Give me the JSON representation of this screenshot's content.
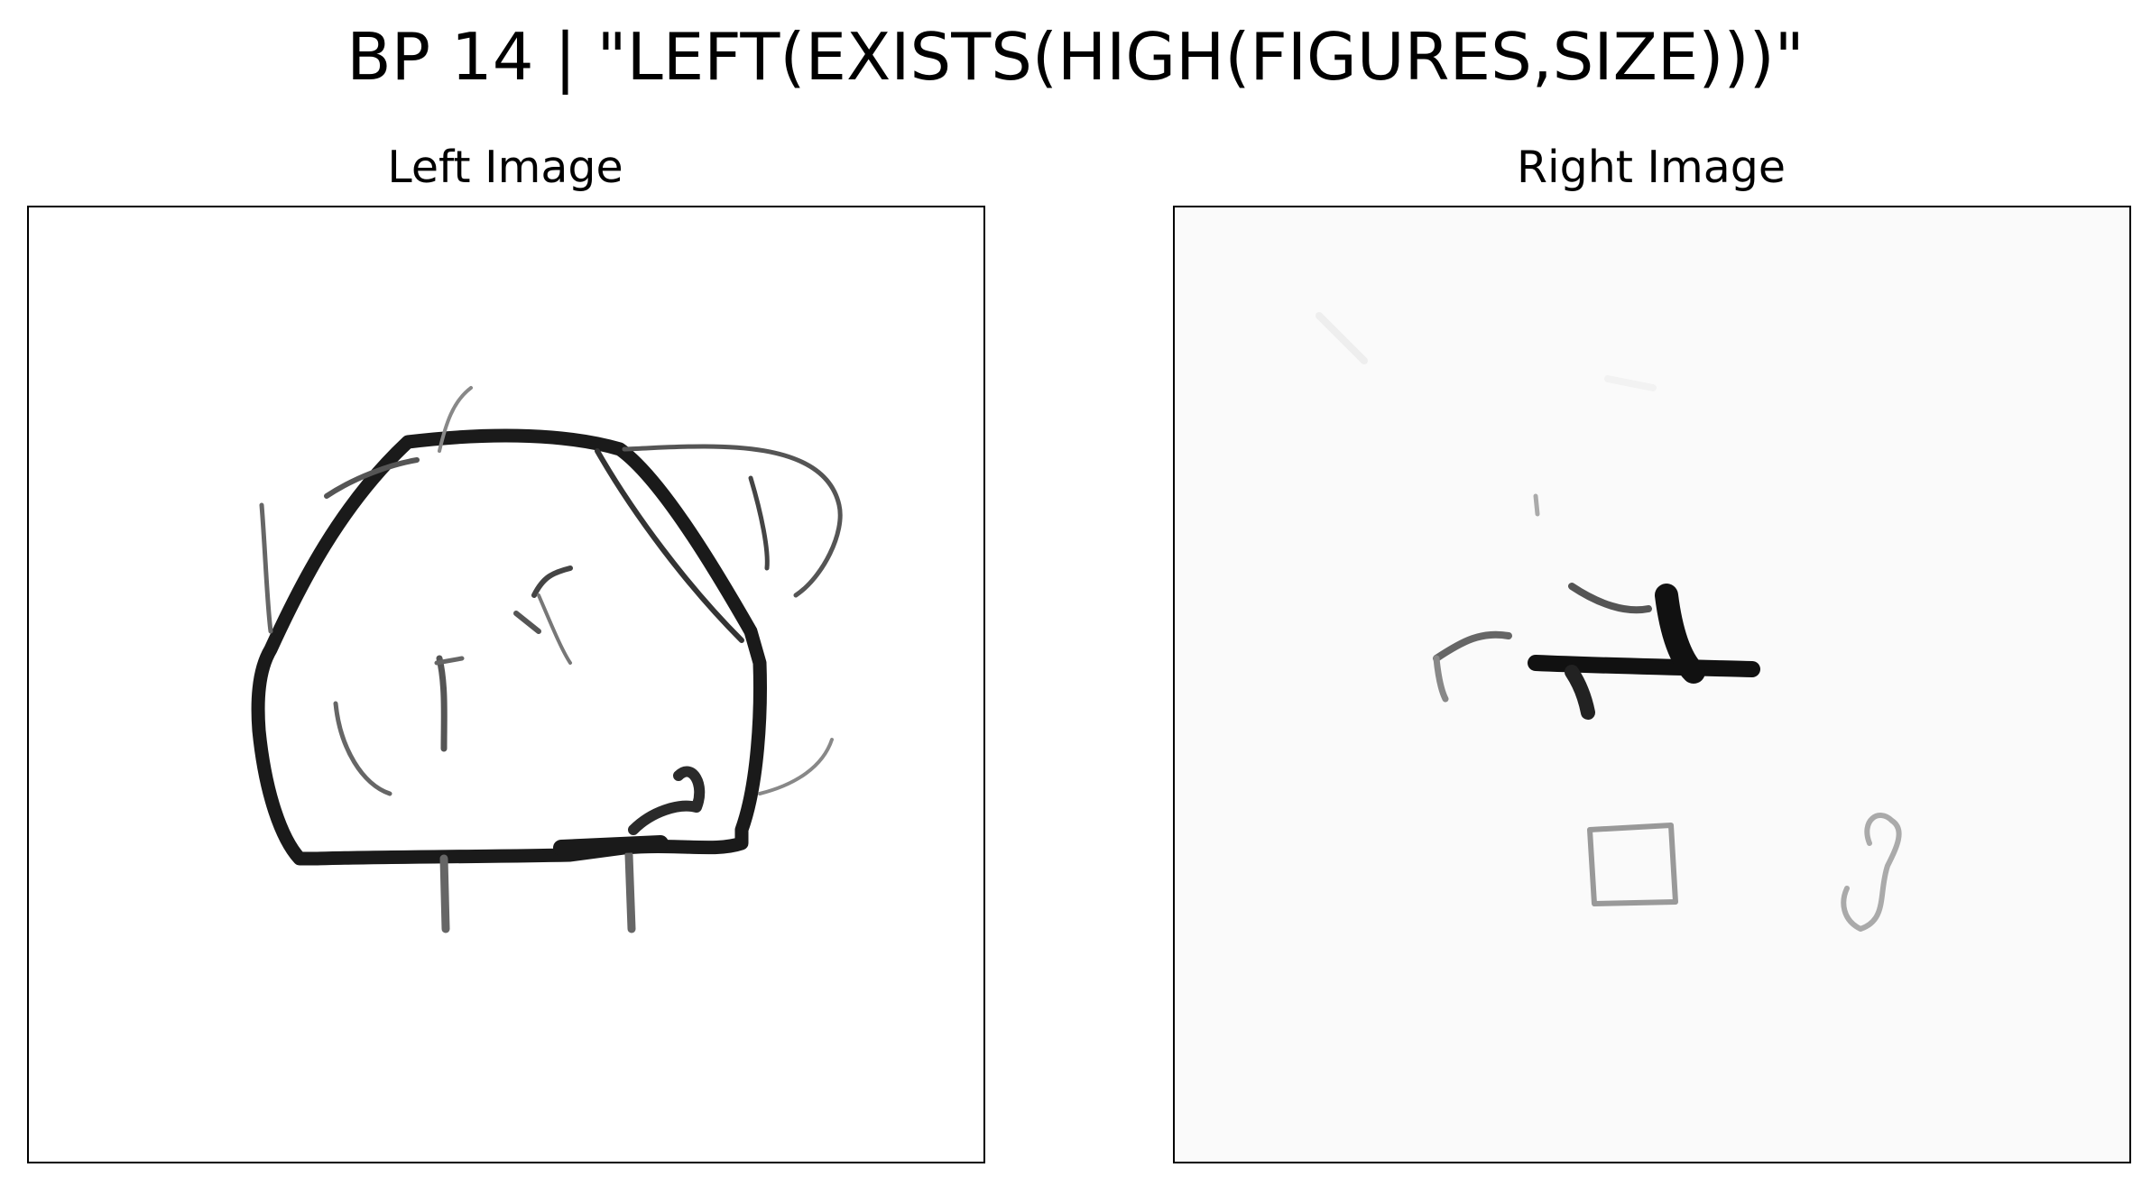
{
  "figure": {
    "title": "BP 14 | \"LEFT(EXISTS(HIGH(FIGURES,SIZE)))\""
  },
  "panels": [
    {
      "title": "Left Image",
      "content": "large hand-drawn closed figure with scattered stroke marks"
    },
    {
      "title": "Right Image",
      "content": "small hand-drawn figures: a dark stroke cluster, a small square, a small loop"
    }
  ],
  "colors": {
    "ink": "#1a1a1a",
    "ink_light": "#9a9a9a",
    "background": "#ffffff",
    "faint_background": "#fafafa"
  }
}
